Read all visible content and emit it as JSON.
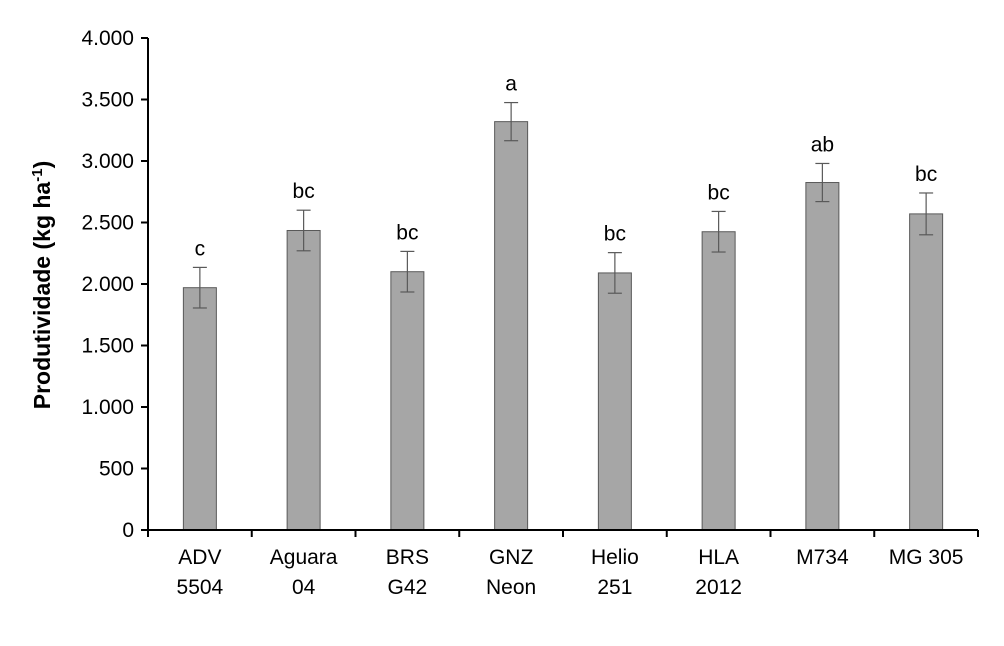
{
  "chart_data": {
    "type": "bar",
    "title": "",
    "xlabel": "",
    "ylabel": {
      "main": "Produtividade (kg ha",
      "sup": "-1",
      "close": ")"
    },
    "ylim": [
      0,
      4000
    ],
    "yticks": [
      {
        "value": 0,
        "label": "0"
      },
      {
        "value": 500,
        "label": "500"
      },
      {
        "value": 1000,
        "label": "1.000"
      },
      {
        "value": 1500,
        "label": "1.500"
      },
      {
        "value": 2000,
        "label": "2.000"
      },
      {
        "value": 2500,
        "label": "2.500"
      },
      {
        "value": 3000,
        "label": "3.000"
      },
      {
        "value": 3500,
        "label": "3.500"
      },
      {
        "value": 4000,
        "label": "4.000"
      }
    ],
    "categories": [
      [
        "ADV",
        "5504"
      ],
      [
        "Aguara",
        "04"
      ],
      [
        "BRS",
        "G42"
      ],
      [
        "GNZ",
        "Neon"
      ],
      [
        "Helio",
        "251"
      ],
      [
        "HLA",
        "2012"
      ],
      [
        "M734"
      ],
      [
        "MG 305"
      ]
    ],
    "values": [
      1970,
      2435,
      2100,
      3320,
      2090,
      2425,
      2825,
      2570
    ],
    "errors": [
      165,
      165,
      165,
      155,
      165,
      165,
      155,
      170
    ],
    "significance": [
      "c",
      "bc",
      "bc",
      "a",
      "bc",
      "bc",
      "ab",
      "bc"
    ],
    "grid": false,
    "legend": "none",
    "colors": {
      "bar_fill": "#a6a6a6",
      "bar_stroke": "#595959",
      "axis": "#000000",
      "error_bar": "#595959"
    }
  }
}
